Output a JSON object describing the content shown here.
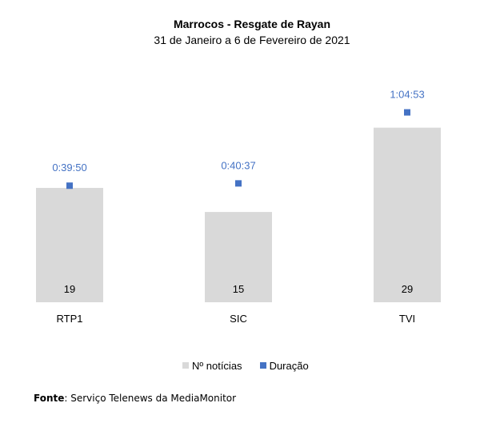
{
  "chart_data": {
    "type": "bar",
    "title": "Marrocos - Resgate de Rayan",
    "subtitle": "31 de Janeiro a 6 de Fevereiro de 2021",
    "categories": [
      "RTP1",
      "SIC",
      "TVI"
    ],
    "series": [
      {
        "name": "Nº notícias",
        "type": "bar",
        "values": [
          19,
          15,
          29
        ],
        "color": "#d9d9d9"
      },
      {
        "name": "Duração",
        "type": "scatter",
        "axis": "secondary",
        "values": [
          "0:39:50",
          "0:40:37",
          "1:04:53"
        ],
        "color": "#4472c4"
      }
    ],
    "ylim": [
      0,
      35
    ],
    "y2lim": [
      "0:00:00",
      "1:12:00"
    ],
    "axes_visible": false,
    "grid": false,
    "legend": "bottom",
    "label_color": "#4472c4"
  },
  "footer": {
    "label": "Fonte",
    "text": ": Serviço Telenews da MediaMonitor"
  }
}
